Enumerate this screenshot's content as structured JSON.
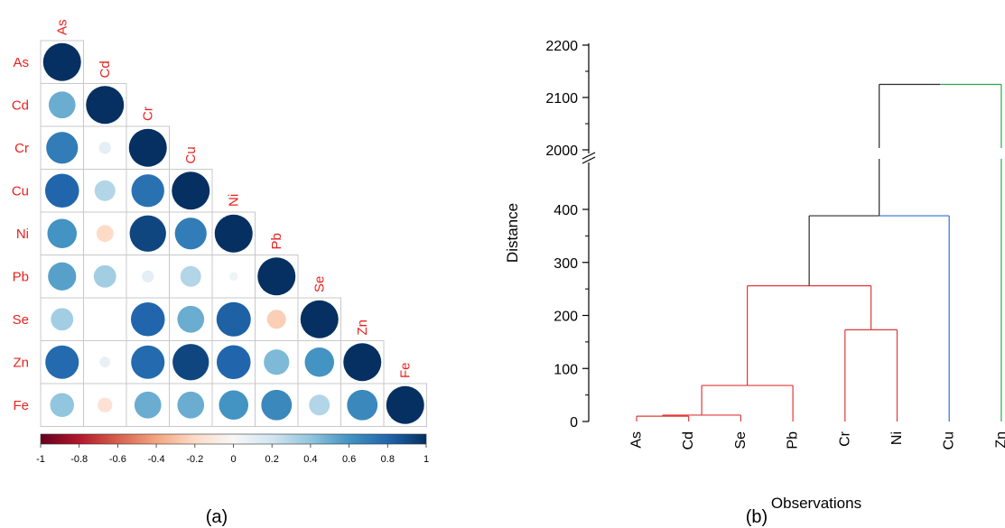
{
  "panel_labels": {
    "a": "(a)",
    "b": "(b)"
  },
  "chart_data": [
    {
      "type": "heatmap",
      "style": "lower-triangle correlation circles",
      "variables": [
        "As",
        "Cd",
        "Cr",
        "Cu",
        "Ni",
        "Pb",
        "Se",
        "Zn",
        "Fe"
      ],
      "matrix": [
        [
          1.0
        ],
        [
          0.5,
          1.0
        ],
        [
          0.7,
          0.1,
          1.0
        ],
        [
          0.8,
          0.3,
          0.75,
          1.0
        ],
        [
          0.6,
          -0.2,
          0.92,
          0.7,
          1.0
        ],
        [
          0.55,
          0.35,
          0.1,
          0.3,
          0.05,
          1.0
        ],
        [
          0.35,
          0.0,
          0.8,
          0.5,
          0.82,
          -0.25,
          1.0
        ],
        [
          0.78,
          0.08,
          0.78,
          0.92,
          0.8,
          0.45,
          0.6,
          1.0
        ],
        [
          0.4,
          -0.15,
          0.5,
          0.5,
          0.6,
          0.65,
          0.3,
          0.65,
          1.0
        ]
      ],
      "colorbar": {
        "range": [
          -1,
          1
        ],
        "ticks": [
          "-1",
          "-0.8",
          "-0.6",
          "-0.4",
          "-0.2",
          "0",
          "0.2",
          "0.4",
          "0.6",
          "0.8",
          "1"
        ],
        "colors": [
          "#67001f",
          "#b2182b",
          "#d6604d",
          "#f4a582",
          "#fddbc7",
          "#f7f7f7",
          "#d1e5f0",
          "#92c5de",
          "#4393c3",
          "#2166ac",
          "#053061"
        ]
      }
    },
    {
      "type": "dendrogram",
      "xlabel": "Observations",
      "ylabel": "Distance",
      "leaves": [
        "As",
        "Cd",
        "Se",
        "Pb",
        "Cr",
        "Ni",
        "Cu",
        "Zn"
      ],
      "y_ticks_lower": [
        "0",
        "100",
        "200",
        "300",
        "400"
      ],
      "y_ticks_upper": [
        "2000",
        "2100",
        "2200"
      ],
      "axis_break": [
        420,
        2000
      ],
      "merges": [
        {
          "left": [
            "As",
            "Cd"
          ],
          "height": 10,
          "color": "#e0383a"
        },
        {
          "left": [
            "As-Cd",
            "Se"
          ],
          "height": 12,
          "color": "#e0383a"
        },
        {
          "left": [
            "As-Cd-Se",
            "Pb"
          ],
          "height": 68,
          "color": "#e0383a"
        },
        {
          "left": [
            "Cr",
            "Ni"
          ],
          "height": 173,
          "color": "#e0383a"
        },
        {
          "left": [
            "As-Cd-Se-Pb",
            "Cr-Ni"
          ],
          "height": 256,
          "color": "#e0383a"
        },
        {
          "left": [
            "red-cluster",
            "Cu"
          ],
          "height": 388,
          "color": "#2f6fd6"
        },
        {
          "left": [
            "cluster",
            "Zn"
          ],
          "height": 2125,
          "color": "#2ba84a"
        }
      ]
    }
  ]
}
